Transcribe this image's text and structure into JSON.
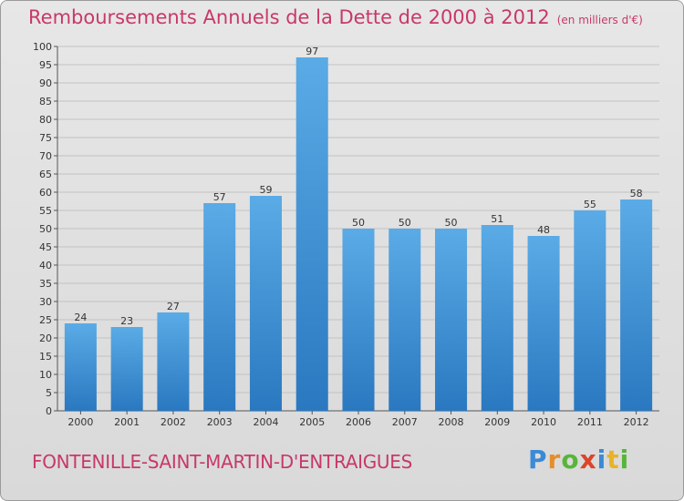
{
  "title": "Remboursements Annuels de la Dette de 2000 à 2012",
  "subtitle": "(en milliers d'€)",
  "commune": "FONTENILLE-SAINT-MARTIN-D'ENTRAIGUES",
  "logo": {
    "letters": [
      "P",
      "r",
      "o",
      "x",
      "i",
      "t",
      "i"
    ]
  },
  "colors": {
    "title": "#c8386a",
    "bar_top": "#5aabe6",
    "bar_bottom": "#2a78c0",
    "background": "#e0e0e0"
  },
  "chart_data": {
    "type": "bar",
    "categories": [
      "2000",
      "2001",
      "2002",
      "2003",
      "2004",
      "2005",
      "2006",
      "2007",
      "2008",
      "2009",
      "2010",
      "2011",
      "2012"
    ],
    "values": [
      24,
      23,
      27,
      57,
      59,
      97,
      50,
      50,
      50,
      51,
      48,
      55,
      58
    ],
    "ylim": [
      0,
      100
    ],
    "yticks": [
      0,
      5,
      10,
      15,
      20,
      25,
      30,
      35,
      40,
      45,
      50,
      55,
      60,
      65,
      70,
      75,
      80,
      85,
      90,
      95,
      100
    ],
    "grid": true,
    "data_labels": true
  }
}
